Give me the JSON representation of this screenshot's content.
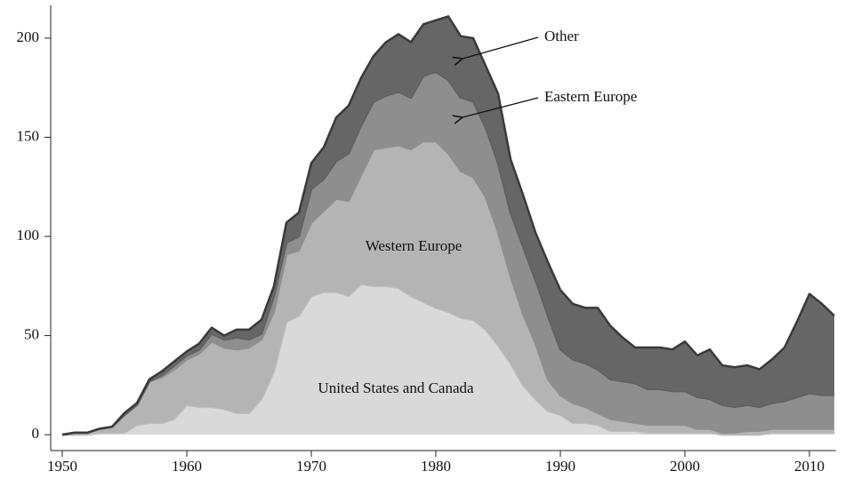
{
  "chart_data": {
    "type": "stacked_area",
    "x": [
      1950,
      1951,
      1952,
      1953,
      1954,
      1955,
      1956,
      1957,
      1958,
      1959,
      1960,
      1961,
      1962,
      1963,
      1964,
      1965,
      1966,
      1967,
      1968,
      1969,
      1970,
      1971,
      1972,
      1973,
      1974,
      1975,
      1976,
      1977,
      1978,
      1979,
      1980,
      1981,
      1982,
      1983,
      1984,
      1985,
      1986,
      1987,
      1988,
      1989,
      1990,
      1991,
      1992,
      1993,
      1994,
      1995,
      1996,
      1997,
      1998,
      1999,
      2000,
      2001,
      2002,
      2003,
      2004,
      2005,
      2006,
      2007,
      2008,
      2009,
      2010,
      2011,
      2012
    ],
    "series": [
      {
        "name": "United States and Canada",
        "color": "#d9d9d9",
        "line": "#bdbdbd",
        "values": [
          0,
          0,
          0,
          1,
          1,
          1,
          5,
          6,
          6,
          8,
          15,
          14,
          14,
          13,
          11,
          11,
          18,
          32,
          57,
          60,
          70,
          72,
          72,
          70,
          76,
          75,
          75,
          74,
          70,
          67,
          64,
          62,
          59,
          58,
          53,
          45,
          36,
          25,
          18,
          12,
          10,
          6,
          6,
          5,
          2,
          2,
          2,
          1,
          1,
          1,
          1,
          1,
          1,
          0,
          0,
          0,
          0,
          1,
          1,
          1,
          1,
          1,
          1
        ]
      },
      {
        "name": "Western Europe",
        "color": "#b4b4b4",
        "line": "#8f8f8f",
        "values": [
          0,
          1,
          1,
          2,
          3,
          9,
          10,
          21,
          23,
          25,
          23,
          27,
          33,
          31,
          32,
          33,
          30,
          30,
          34,
          33,
          37,
          41,
          47,
          48,
          55,
          69,
          70,
          72,
          74,
          81,
          84,
          80,
          74,
          72,
          67,
          57,
          44,
          36,
          28,
          16,
          10,
          10,
          8,
          6,
          6,
          5,
          4,
          4,
          4,
          4,
          4,
          2,
          2,
          1,
          1,
          2,
          2,
          2,
          2,
          2,
          2,
          2,
          2
        ]
      },
      {
        "name": "Eastern Europe",
        "color": "#8e8e8e",
        "line": "#5e5e5e",
        "values": [
          0,
          0,
          0,
          0,
          0,
          0,
          0,
          0,
          1,
          2,
          2,
          2,
          4,
          4,
          6,
          4,
          3,
          8,
          6,
          7,
          17,
          16,
          19,
          24,
          25,
          24,
          26,
          27,
          26,
          33,
          35,
          37,
          37,
          38,
          35,
          35,
          32,
          34,
          32,
          32,
          23,
          22,
          22,
          22,
          20,
          20,
          20,
          18,
          18,
          17,
          17,
          16,
          15,
          14,
          13,
          13,
          12,
          13,
          14,
          16,
          18,
          17,
          17
        ]
      },
      {
        "name": "Other",
        "color": "#666666",
        "line": "#3a3a3a",
        "values": [
          0,
          0,
          0,
          0,
          0,
          1,
          1,
          1,
          2,
          2,
          2,
          3,
          3,
          2,
          4,
          5,
          7,
          5,
          10,
          12,
          13,
          16,
          22,
          24,
          24,
          23,
          27,
          29,
          28,
          26,
          26,
          32,
          31,
          32,
          31,
          35,
          27,
          26,
          24,
          27,
          30,
          28,
          28,
          31,
          27,
          22,
          18,
          21,
          21,
          21,
          25,
          21,
          25,
          20,
          20,
          20,
          19,
          22,
          27,
          38,
          50,
          46,
          40
        ]
      }
    ],
    "xlim": [
      1949,
      2012
    ],
    "xticks": [
      1950,
      1960,
      1970,
      1980,
      1990,
      2000,
      2010
    ],
    "ylim": [
      -8,
      217
    ],
    "yticks": [
      0,
      50,
      100,
      150,
      200
    ]
  }
}
